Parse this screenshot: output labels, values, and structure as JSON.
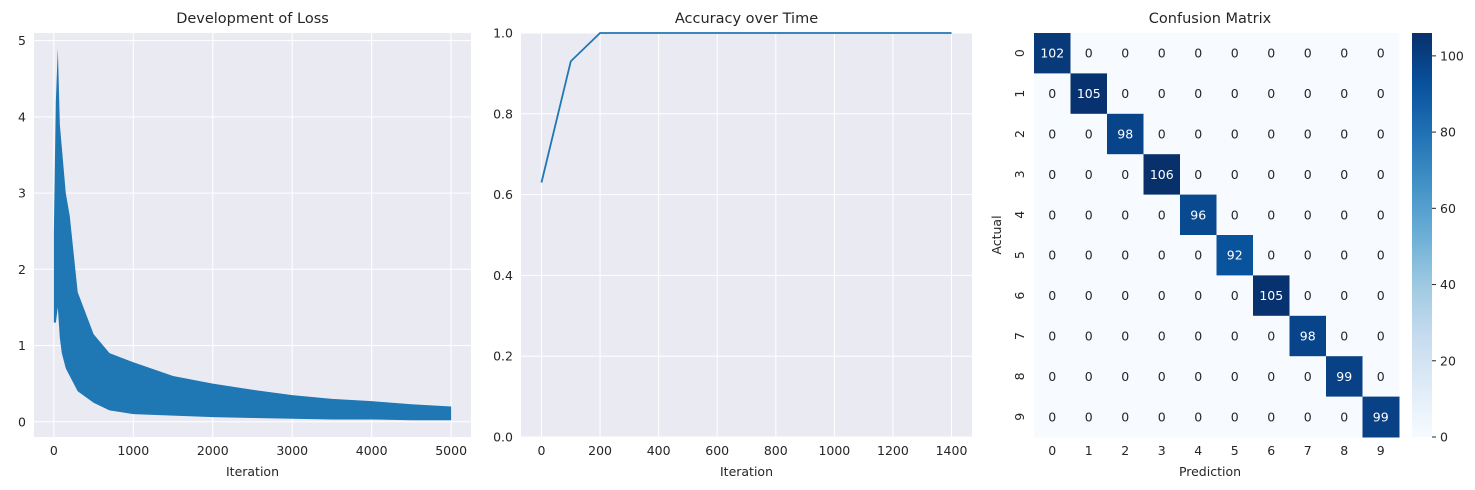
{
  "chart_data": [
    {
      "type": "line",
      "title": "Development of Loss",
      "xlabel": "Iteration",
      "ylabel": "",
      "xlim": [
        -250,
        5250
      ],
      "ylim": [
        -0.2,
        5.1
      ],
      "xticks": [
        0,
        1000,
        2000,
        3000,
        4000,
        5000
      ],
      "yticks": [
        0,
        1,
        2,
        3,
        4,
        5
      ],
      "grid": true,
      "color": "#1f77b4",
      "series": [
        {
          "x": [
            0,
            25,
            50,
            75,
            100,
            150,
            200,
            300,
            500,
            700,
            1000,
            1500,
            2000,
            2500,
            3000,
            3500,
            4000,
            4500,
            5000
          ],
          "y_upper": [
            2.5,
            4.2,
            4.9,
            3.9,
            3.6,
            3.0,
            2.7,
            1.7,
            1.15,
            0.9,
            0.78,
            0.6,
            0.5,
            0.42,
            0.35,
            0.3,
            0.27,
            0.23,
            0.2
          ],
          "y_lower": [
            1.3,
            1.3,
            1.5,
            1.1,
            0.9,
            0.7,
            0.6,
            0.4,
            0.25,
            0.15,
            0.1,
            0.08,
            0.06,
            0.05,
            0.04,
            0.03,
            0.03,
            0.02,
            0.02
          ]
        }
      ]
    },
    {
      "type": "line",
      "title": "Accuracy over Time",
      "xlabel": "Iteration",
      "ylabel": "",
      "xlim": [
        -70,
        1470
      ],
      "ylim": [
        0.0,
        1.0
      ],
      "xticks": [
        0,
        200,
        400,
        600,
        800,
        1000,
        1200,
        1400
      ],
      "yticks": [
        0.0,
        0.2,
        0.4,
        0.6,
        0.8,
        1.0
      ],
      "grid": true,
      "color": "#1f77b4",
      "series": [
        {
          "x": [
            0,
            100,
            200,
            300,
            400,
            500,
            600,
            700,
            800,
            900,
            1000,
            1100,
            1200,
            1300,
            1400
          ],
          "y": [
            0.63,
            0.93,
            1.0,
            1.0,
            1.0,
            1.0,
            1.0,
            1.0,
            1.0,
            1.0,
            1.0,
            1.0,
            1.0,
            1.0,
            1.0
          ]
        }
      ]
    },
    {
      "type": "heatmap",
      "title": "Confusion Matrix",
      "xlabel": "Prediction",
      "ylabel": "Actual",
      "x_categories": [
        "0",
        "1",
        "2",
        "3",
        "4",
        "5",
        "6",
        "7",
        "8",
        "9"
      ],
      "y_categories": [
        "0",
        "1",
        "2",
        "3",
        "4",
        "5",
        "6",
        "7",
        "8",
        "9"
      ],
      "diagonal": [
        102,
        105,
        98,
        106,
        96,
        92,
        105,
        98,
        99,
        99
      ],
      "off_diagonal_value": 0,
      "colorbar_ticks": [
        0,
        20,
        40,
        60,
        80,
        100
      ],
      "vmin": 0,
      "vmax": 106,
      "colormap": "Blues"
    }
  ]
}
